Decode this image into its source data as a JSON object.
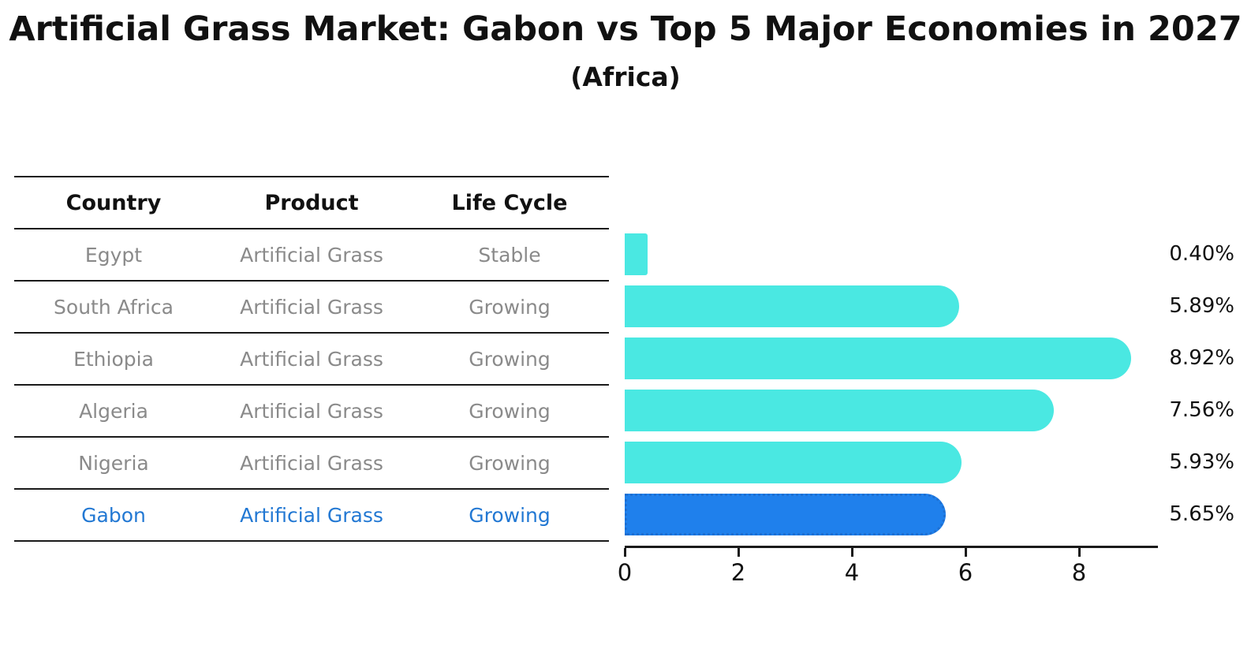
{
  "title": "Artificial Grass Market: Gabon vs Top 5 Major Economies in 2027",
  "subtitle": "(Africa)",
  "table": {
    "headers": [
      "Country",
      "Product",
      "Life Cycle"
    ],
    "rows": [
      {
        "country": "Egypt",
        "product": "Artificial Grass",
        "life_cycle": "Stable",
        "highlight": false
      },
      {
        "country": "South Africa",
        "product": "Artificial Grass",
        "life_cycle": "Growing",
        "highlight": false
      },
      {
        "country": "Ethiopia",
        "product": "Artificial Grass",
        "life_cycle": "Growing",
        "highlight": false
      },
      {
        "country": "Algeria",
        "product": "Artificial Grass",
        "life_cycle": "Growing",
        "highlight": false
      },
      {
        "country": "Nigeria",
        "product": "Artificial Grass",
        "life_cycle": "Growing",
        "highlight": true
      }
    ],
    "highlight_row": {
      "country": "Gabon",
      "product": "Artificial Grass",
      "life_cycle": "Growing"
    }
  },
  "chart_data": {
    "type": "bar",
    "orientation": "horizontal",
    "title": "Artificial Grass Market: Gabon vs Top 5 Major Economies in 2027",
    "subtitle": "(Africa)",
    "categories": [
      "Egypt",
      "South Africa",
      "Ethiopia",
      "Algeria",
      "Nigeria",
      "Gabon"
    ],
    "values": [
      0.4,
      5.89,
      8.92,
      7.56,
      5.93,
      5.65
    ],
    "value_labels": [
      "0.40%",
      "5.89%",
      "8.92%",
      "7.56%",
      "5.93%",
      "5.65%"
    ],
    "x_ticks": [
      0,
      2,
      4,
      6,
      8
    ],
    "xlim": [
      0,
      9.38
    ],
    "grid": false,
    "legend": false,
    "bar_color": "#4AE8E2",
    "highlight_index": 5,
    "highlight_color": "#1F80EC",
    "highlight_border_color": "#1d6fd2"
  },
  "colors": {
    "text_primary": "#111111",
    "text_muted": "#8a8a8a",
    "highlight_text": "#2278d3",
    "line": "#1a1a1a"
  }
}
